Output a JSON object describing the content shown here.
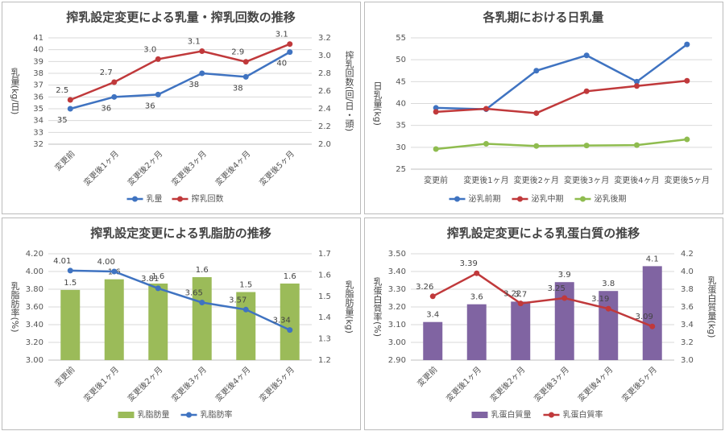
{
  "chart_data": [
    {
      "type": "line",
      "title": "搾乳設定変更による乳量・搾乳回数の推移",
      "categories": [
        "変更前",
        "変更後1ヶ月",
        "変更後2ヶ月",
        "変更後3ヶ月",
        "変更後4ヶ月",
        "変更後5ヶ月"
      ],
      "ylabel": "乳量(kg/日)",
      "y2label": "搾乳回数(回/日・頭)",
      "ylim": [
        32,
        41
      ],
      "yticks": [
        32,
        33,
        34,
        35,
        36,
        37,
        38,
        39,
        40,
        41
      ],
      "y2lim": [
        2,
        3.2
      ],
      "y2ticks": [
        {
          "value": 2,
          "label": "2.0"
        },
        2.2,
        2.4,
        2.6,
        2.8,
        {
          "value": 3,
          "label": "3.0"
        },
        3.2
      ],
      "grid": true,
      "series": [
        {
          "name": "乳量",
          "color": "#3f73c1",
          "values": [
            35.0,
            36.0,
            36.2,
            38.0,
            37.7,
            39.8
          ],
          "value_labels": [
            "35",
            "36",
            "36",
            "38",
            "38",
            "40"
          ]
        },
        {
          "name": "搾乳回数",
          "color": "#c0393b",
          "axis": "y2",
          "values": [
            2.5,
            2.7,
            2.96,
            3.05,
            2.93,
            3.13
          ],
          "value_labels": [
            "2.5",
            "2.7",
            "3.0",
            "3.1",
            "2.9",
            "3.1"
          ]
        }
      ]
    },
    {
      "type": "line",
      "title": "各乳期における日乳量",
      "categories": [
        "変更前",
        "変更後1ヶ月",
        "変更後2ヶ月",
        "変更後3ヶ月",
        "変更後4ヶ月",
        "変更後5ヶ月"
      ],
      "ylabel": "日乳量(kg)",
      "ylim": [
        25,
        55
      ],
      "yticks": [
        25,
        30,
        35,
        40,
        45,
        50,
        55
      ],
      "grid": true,
      "series": [
        {
          "name": "泌乳前期",
          "color": "#3f73c1",
          "values": [
            39.0,
            38.7,
            47.5,
            51.0,
            45.0,
            53.5
          ]
        },
        {
          "name": "泌乳中期",
          "color": "#c0393b",
          "values": [
            38.1,
            38.8,
            37.8,
            42.8,
            44.0,
            45.2
          ]
        },
        {
          "name": "泌乳後期",
          "color": "#8fbc4f",
          "values": [
            29.6,
            30.8,
            30.3,
            30.4,
            30.5,
            31.8
          ]
        }
      ]
    },
    {
      "type": "combo",
      "title": "搾乳設定変更による乳脂肪の推移",
      "categories": [
        "変更前",
        "変更後1ヶ月",
        "変更後2ヶ月",
        "変更後3ヶ月",
        "変更後4ヶ月",
        "変更後5ヶ月"
      ],
      "ylabel": "乳脂肪率(%)",
      "y2label": "乳脂肪量(kg)",
      "ylim": [
        3,
        4.2
      ],
      "yticks": [
        {
          "value": 3,
          "label": "3.00"
        },
        {
          "value": 3.2,
          "label": "3.20"
        },
        {
          "value": 3.4,
          "label": "3.40"
        },
        {
          "value": 3.6,
          "label": "3.60"
        },
        {
          "value": 3.8,
          "label": "3.80"
        },
        {
          "value": 4,
          "label": "4.00"
        },
        {
          "value": 4.2,
          "label": "4.20"
        }
      ],
      "y2lim": [
        1.2,
        1.7
      ],
      "y2ticks": [
        1.2,
        1.3,
        1.4,
        1.5,
        1.6,
        1.7
      ],
      "grid": true,
      "series": [
        {
          "name": "乳脂肪量",
          "type": "bar",
          "axis": "y2",
          "color": "#9bbb59",
          "values": [
            1.53,
            1.58,
            1.56,
            1.59,
            1.52,
            1.56
          ],
          "value_labels": [
            "1.5",
            "1.6",
            "1.6",
            "1.6",
            "1.5",
            "1.6"
          ]
        },
        {
          "name": "乳脂肪率",
          "type": "line",
          "color": "#3f73c1",
          "values": [
            4.01,
            4.0,
            3.81,
            3.65,
            3.57,
            3.34
          ],
          "value_labels": [
            "4.01",
            "4.00",
            "3.81",
            "3.65",
            "3.57",
            "3.34"
          ]
        }
      ]
    },
    {
      "type": "combo",
      "title": "搾乳設定変更による乳蛋白質の推移",
      "categories": [
        "変更前",
        "変更後1ヶ月",
        "変更後2ヶ月",
        "変更後3ヶ月",
        "変更後4ヶ月",
        "変更後5ヶ月"
      ],
      "ylabel": "乳蛋白質率(%)",
      "y2label": "乳蛋白質量(kg)",
      "ylim": [
        2.9,
        3.5
      ],
      "yticks": [
        {
          "value": 2.9,
          "label": "2.90"
        },
        {
          "value": 3,
          "label": "3.00"
        },
        {
          "value": 3.1,
          "label": "3.10"
        },
        {
          "value": 3.2,
          "label": "3.20"
        },
        {
          "value": 3.3,
          "label": "3.30"
        },
        {
          "value": 3.4,
          "label": "3.40"
        },
        {
          "value": 3.5,
          "label": "3.50"
        }
      ],
      "y2lim": [
        3,
        4.2
      ],
      "y2ticks": [
        {
          "value": 3,
          "label": "3.0"
        },
        3.2,
        3.4,
        3.6,
        3.8,
        {
          "value": 4,
          "label": "4.0"
        },
        4.2
      ],
      "grid": true,
      "series": [
        {
          "name": "乳蛋白質量",
          "type": "bar",
          "axis": "y2",
          "color": "#8064a2",
          "values": [
            3.43,
            3.63,
            3.66,
            3.88,
            3.78,
            4.06
          ],
          "value_labels": [
            "3.4",
            "3.6",
            "3.7",
            "3.9",
            "3.8",
            "4.1"
          ]
        },
        {
          "name": "乳蛋白質率",
          "type": "line",
          "color": "#c0393b",
          "values": [
            3.26,
            3.39,
            3.22,
            3.25,
            3.19,
            3.09
          ],
          "value_labels": [
            "3.26",
            "3.39",
            "3.22",
            "3.25",
            "3.19",
            "3.09"
          ]
        }
      ]
    }
  ]
}
